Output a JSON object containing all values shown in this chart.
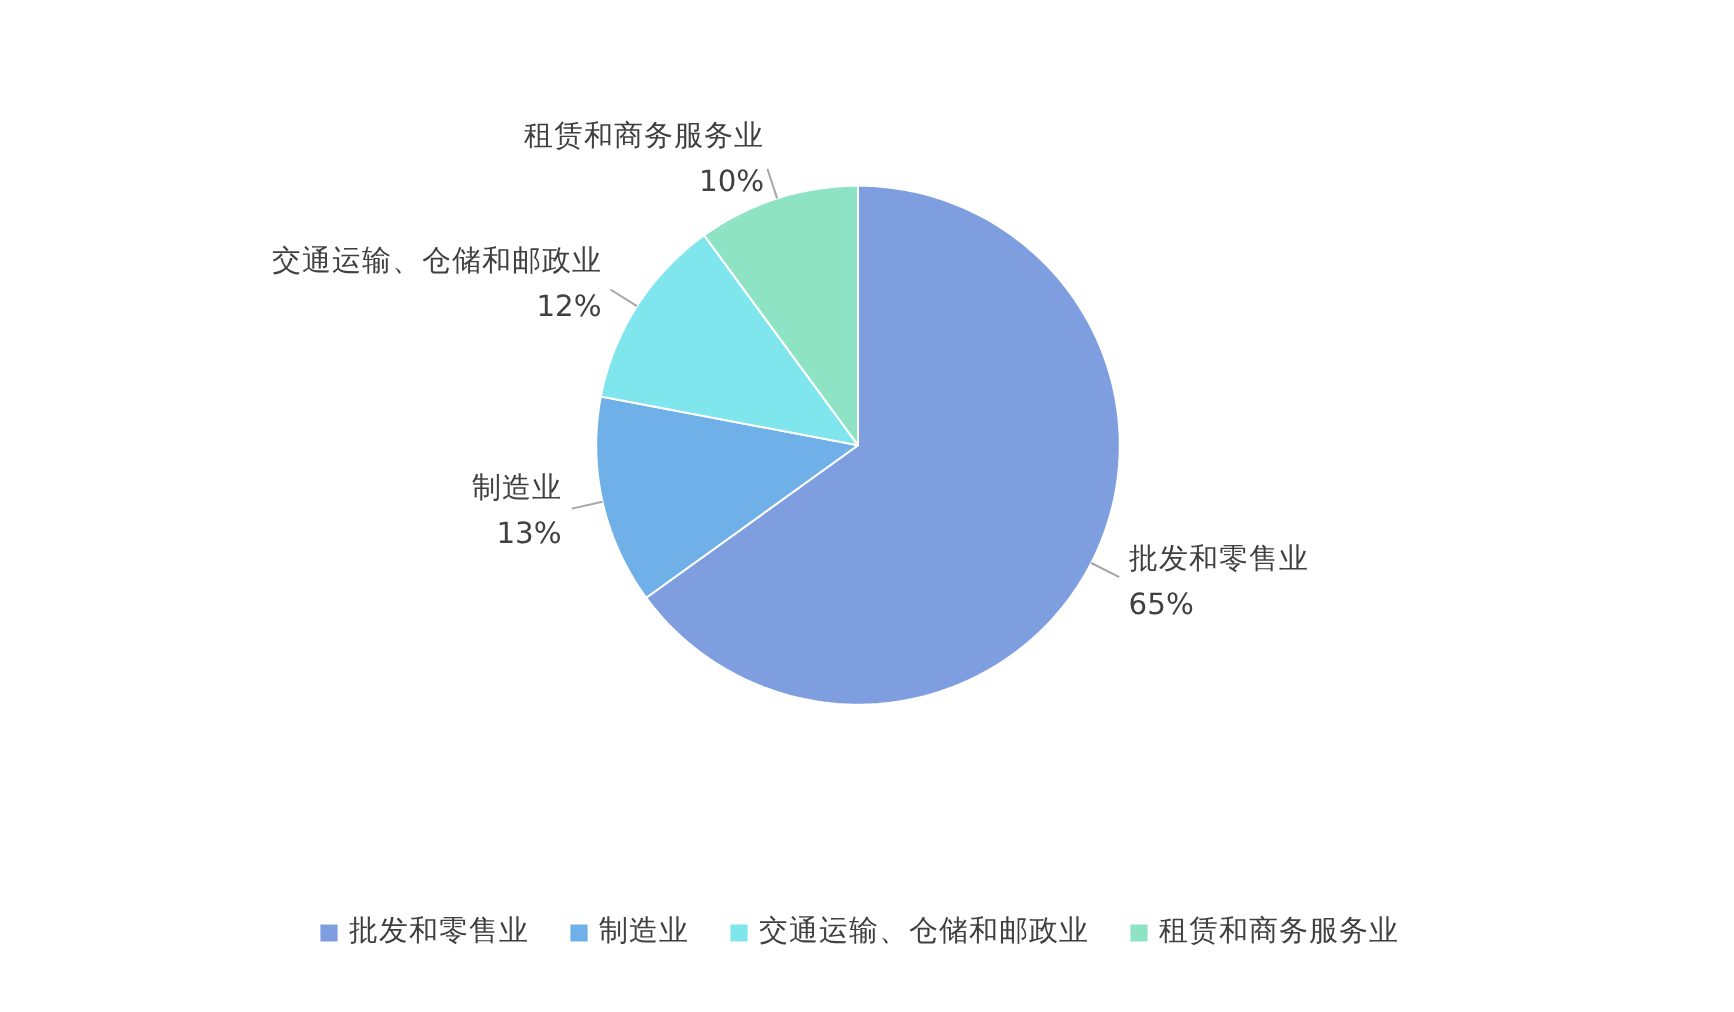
{
  "chart_data": {
    "type": "pie",
    "categories": [
      "批发和零售业",
      "制造业",
      "交通运输、仓储和邮政业",
      "租赁和商务服务业"
    ],
    "values": [
      65,
      13,
      12,
      10
    ],
    "colors": [
      "#7f9ee0",
      "#6fb0e8",
      "#7fe6ee",
      "#8ee3c4"
    ],
    "value_labels": [
      "65%",
      "13%",
      "12%",
      "10%"
    ],
    "legend": "bottom"
  }
}
